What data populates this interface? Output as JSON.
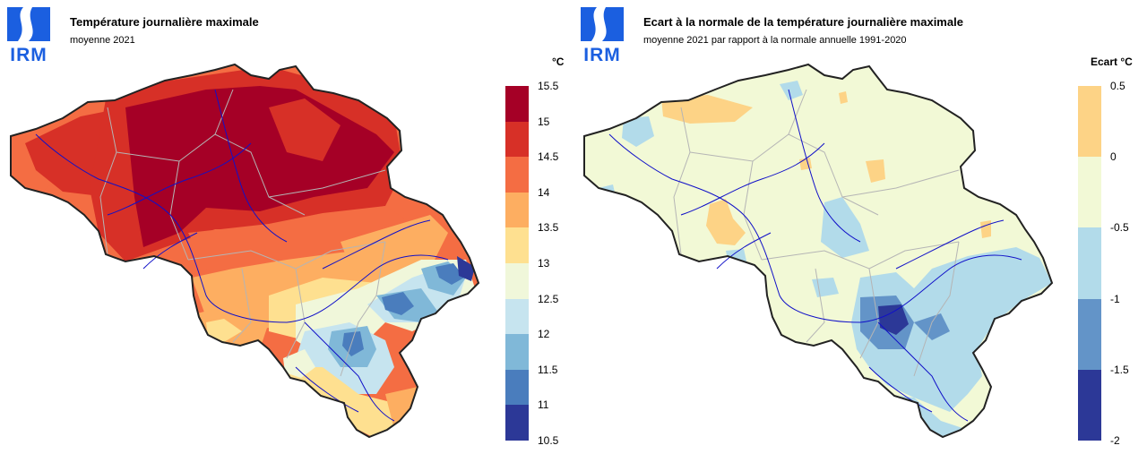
{
  "logo_text": "IRM",
  "left": {
    "title": "Température journalière maximale",
    "subtitle": "moyenne 2021",
    "unit": "°C",
    "legend": {
      "ticks": [
        "15.5",
        "15",
        "14.5",
        "14",
        "13.5",
        "13",
        "12.5",
        "12",
        "11.5",
        "11",
        "10.5"
      ],
      "colors": [
        "#a50026",
        "#d73027",
        "#f46d43",
        "#fdae61",
        "#fee090",
        "#f0f7da",
        "#c6e4ef",
        "#80b8d8",
        "#4a7dbd",
        "#2c3897"
      ]
    }
  },
  "right": {
    "title": "Ecart à la normale de la température journalière maximale",
    "subtitle": "moyenne 2021 par rapport à la normale annuelle 1991-2020",
    "unit": "Ecart °C",
    "legend": {
      "ticks": [
        "0.5",
        "0",
        "-0.5",
        "-1",
        "-1.5",
        "-2"
      ],
      "colors": [
        "#fdd386",
        "#f2f9d6",
        "#b2dbea",
        "#6394c8",
        "#2c3897"
      ]
    }
  },
  "colors": {
    "logo_blue": "#1b5fe0",
    "border": "#222222",
    "province_lines": "#b5b5b5",
    "rivers": "#1010c8"
  }
}
